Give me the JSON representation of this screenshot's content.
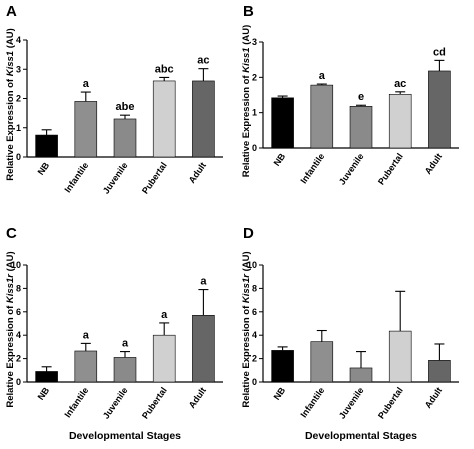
{
  "chart_data": [
    {
      "panel": "A",
      "type": "bar",
      "ylabel_pre": "Relative Expression of ",
      "ylabel_gene": "Kiss1",
      "ylabel_post": " (AU)",
      "xlabel": "",
      "ylim": [
        0,
        4
      ],
      "yticks": [
        0,
        1,
        2,
        3,
        4
      ],
      "categories": [
        "NB",
        "Infantile",
        "Juvenile",
        "Pubertal",
        "Adult"
      ],
      "values": [
        0.75,
        1.9,
        1.3,
        2.6,
        2.6
      ],
      "errors": [
        0.18,
        0.32,
        0.13,
        0.12,
        0.42
      ],
      "annotations": [
        "",
        "a",
        "abe",
        "abc",
        "ac"
      ],
      "colors": [
        "#000000",
        "#8f8f8f",
        "#8a8a8a",
        "#d0d0d0",
        "#666666"
      ]
    },
    {
      "panel": "B",
      "type": "bar",
      "ylabel_pre": "Relative Expression of ",
      "ylabel_gene": "Kiss1",
      "ylabel_post": " (AU)",
      "xlabel": "",
      "ylim": [
        0,
        3
      ],
      "yticks": [
        0,
        1,
        2,
        3
      ],
      "categories": [
        "NB",
        "Infantile",
        "Juvenile",
        "Pubertal",
        "Adult"
      ],
      "values": [
        1.42,
        1.78,
        1.18,
        1.52,
        2.18
      ],
      "errors": [
        0.05,
        0.03,
        0.03,
        0.07,
        0.3
      ],
      "annotations": [
        "",
        "a",
        "e",
        "ac",
        "cd"
      ],
      "colors": [
        "#000000",
        "#8f8f8f",
        "#8a8a8a",
        "#d0d0d0",
        "#666666"
      ]
    },
    {
      "panel": "C",
      "type": "bar",
      "ylabel_pre": "Relative Expression of ",
      "ylabel_gene": "Kiss1r",
      "ylabel_post": " (AU)",
      "xlabel": "Developmental Stages",
      "ylim": [
        0,
        10
      ],
      "yticks": [
        0,
        2,
        4,
        6,
        8,
        10
      ],
      "categories": [
        "NB",
        "Infantile",
        "Juvenile",
        "Pubertal",
        "Adult"
      ],
      "values": [
        0.9,
        2.65,
        2.1,
        4.0,
        5.7
      ],
      "errors": [
        0.4,
        0.65,
        0.5,
        1.05,
        2.2
      ],
      "annotations": [
        "",
        "a",
        "a",
        "a",
        "a"
      ],
      "colors": [
        "#000000",
        "#8f8f8f",
        "#8a8a8a",
        "#d0d0d0",
        "#666666"
      ]
    },
    {
      "panel": "D",
      "type": "bar",
      "ylabel_pre": "Relative Expression of ",
      "ylabel_gene": "Kiss1r",
      "ylabel_post": " (AU)",
      "xlabel": "Developmental Stages",
      "ylim": [
        0,
        10
      ],
      "yticks": [
        0,
        2,
        4,
        6,
        8,
        10
      ],
      "categories": [
        "NB",
        "Infantile",
        "Juvenile",
        "Pubertal",
        "Adult"
      ],
      "values": [
        2.7,
        3.45,
        1.2,
        4.35,
        1.85
      ],
      "errors": [
        0.3,
        0.95,
        1.4,
        3.4,
        1.4
      ],
      "annotations": [
        "",
        "",
        "",
        "",
        ""
      ],
      "colors": [
        "#000000",
        "#8f8f8f",
        "#8a8a8a",
        "#d0d0d0",
        "#666666"
      ]
    }
  ]
}
